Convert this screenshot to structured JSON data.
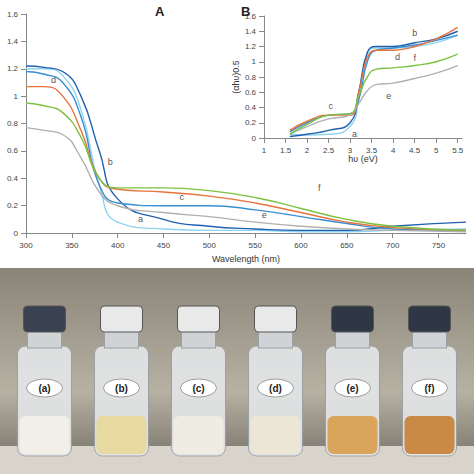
{
  "chart_data": [
    {
      "type": "line",
      "title": "A",
      "x_label": "Wavelength (nm)",
      "x": [
        300,
        320,
        340,
        360,
        380,
        400,
        450,
        500,
        550,
        600,
        650,
        700,
        780
      ],
      "series": [
        {
          "name": "a",
          "color": "#8fd3f0",
          "values": [
            1.2,
            1.2,
            1.15,
            0.9,
            0.35,
            0.08,
            0.03,
            0.02,
            0.02,
            0.01,
            0.01,
            0.02,
            0.03
          ]
        },
        {
          "name": "b",
          "color": "#2060b0",
          "values": [
            1.22,
            1.21,
            1.18,
            1.0,
            0.6,
            0.25,
            0.1,
            0.05,
            0.03,
            0.02,
            0.02,
            0.05,
            0.08
          ]
        },
        {
          "name": "c",
          "color": "#3a8fd0",
          "values": [
            1.18,
            1.16,
            1.1,
            0.85,
            0.35,
            0.22,
            0.2,
            0.2,
            0.17,
            0.12,
            0.07,
            0.03,
            0.02
          ]
        },
        {
          "name": "d",
          "color": "#e8743b",
          "values": [
            1.07,
            1.07,
            1.0,
            0.75,
            0.4,
            0.32,
            0.3,
            0.27,
            0.22,
            0.15,
            0.08,
            0.04,
            0.02
          ]
        },
        {
          "name": "e",
          "color": "#b0b0b0",
          "values": [
            0.77,
            0.75,
            0.72,
            0.55,
            0.3,
            0.2,
            0.15,
            0.12,
            0.08,
            0.05,
            0.03,
            0.02,
            0.01
          ]
        },
        {
          "name": "f",
          "color": "#7cc242",
          "values": [
            0.95,
            0.93,
            0.88,
            0.7,
            0.4,
            0.33,
            0.33,
            0.31,
            0.26,
            0.18,
            0.1,
            0.05,
            0.02
          ]
        }
      ],
      "annotations": [
        {
          "text": "a",
          "x": 425,
          "y": 0.1
        },
        {
          "text": "b",
          "x": 392,
          "y": 0.52
        },
        {
          "text": "c",
          "x": 470,
          "y": 0.26
        },
        {
          "text": "d",
          "x": 330,
          "y": 1.12
        },
        {
          "text": "e",
          "x": 560,
          "y": 0.13
        },
        {
          "text": "f",
          "x": 620,
          "y": 0.33
        }
      ],
      "xlim": [
        300,
        780
      ],
      "xticks": [
        300,
        350,
        400,
        450,
        500,
        550,
        600,
        650,
        700,
        750
      ],
      "ylim": [
        0,
        1.6
      ],
      "yticks": [
        0,
        0.2,
        0.4,
        0.6,
        0.8,
        1,
        1.2,
        1.4,
        1.6
      ],
      "grid": false
    },
    {
      "type": "line",
      "title": "B",
      "x_label": "hʋ (eV)",
      "y_label": "(αhʋ)0.5",
      "x": [
        1.6,
        2,
        2.5,
        3,
        3.2,
        3.4,
        3.6,
        4,
        4.5,
        5,
        5.5
      ],
      "series": [
        {
          "name": "a",
          "color": "#8fd3f0",
          "values": [
            0.05,
            0.04,
            0.05,
            0.15,
            0.5,
            1.1,
            1.18,
            1.18,
            1.2,
            1.25,
            1.35
          ]
        },
        {
          "name": "b",
          "color": "#2060b0",
          "values": [
            0.02,
            0.05,
            0.1,
            0.2,
            0.6,
            1.12,
            1.2,
            1.2,
            1.25,
            1.3,
            1.4
          ]
        },
        {
          "name": "c",
          "color": "#3a8fd0",
          "values": [
            0.08,
            0.2,
            0.3,
            0.32,
            0.5,
            1.0,
            1.15,
            1.18,
            1.22,
            1.28,
            1.35
          ]
        },
        {
          "name": "d",
          "color": "#e8743b",
          "values": [
            0.1,
            0.22,
            0.3,
            0.3,
            0.6,
            1.05,
            1.15,
            1.15,
            1.2,
            1.3,
            1.45
          ]
        },
        {
          "name": "e",
          "color": "#b0b0b0",
          "values": [
            0.05,
            0.15,
            0.25,
            0.3,
            0.45,
            0.62,
            0.7,
            0.72,
            0.78,
            0.85,
            0.95
          ]
        },
        {
          "name": "f",
          "color": "#7cc242",
          "values": [
            0.05,
            0.18,
            0.3,
            0.32,
            0.55,
            0.8,
            0.9,
            0.92,
            0.95,
            1.0,
            1.1
          ]
        }
      ],
      "annotations": [
        {
          "text": "a",
          "x": 3.1,
          "y": 0.05
        },
        {
          "text": "b",
          "x": 4.5,
          "y": 1.38
        },
        {
          "text": "c",
          "x": 2.55,
          "y": 0.42
        },
        {
          "text": "d",
          "x": 4.1,
          "y": 1.06
        },
        {
          "text": "e",
          "x": 3.9,
          "y": 0.55
        },
        {
          "text": "f",
          "x": 4.5,
          "y": 1.05
        }
      ],
      "xlim": [
        1,
        5.6
      ],
      "xticks": [
        1,
        1.5,
        2,
        2.5,
        3,
        3.5,
        4,
        4.5,
        5,
        5.5
      ],
      "ylim": [
        0,
        1.6
      ],
      "yticks": [
        0,
        0.2,
        0.4,
        0.6,
        0.8,
        1,
        1.2,
        1.4,
        1.6
      ],
      "grid": false
    }
  ],
  "photo": {
    "labels": [
      "(a)",
      "(b)",
      "(c)",
      "(d)",
      "(e)",
      "(f)"
    ]
  }
}
